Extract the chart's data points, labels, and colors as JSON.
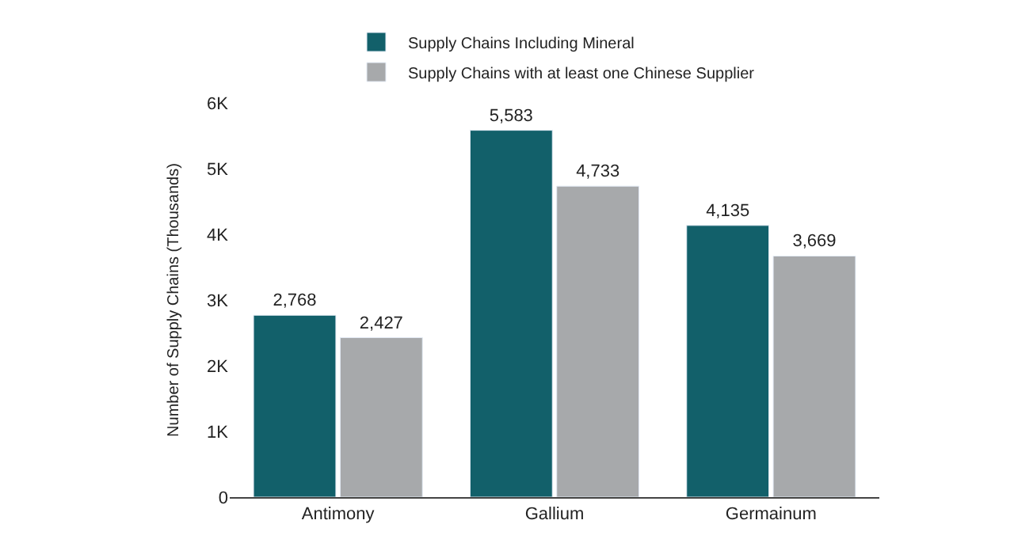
{
  "chart_data": {
    "type": "bar",
    "ylabel": "Number of Supply Chains (Thousands)",
    "categories": [
      "Antimony",
      "Gallium",
      "Germainum"
    ],
    "series": [
      {
        "name": "Supply Chains Including Mineral",
        "color": "#12606a",
        "values": [
          2768,
          5583,
          4135
        ],
        "value_labels": [
          "2,768",
          "5,583",
          "4,135"
        ]
      },
      {
        "name": "Supply Chains with at least one Chinese Supplier",
        "color": "#a7a9ab",
        "values": [
          2427,
          4733,
          3669
        ],
        "value_labels": [
          "2,427",
          "4,733",
          "3,669"
        ]
      }
    ],
    "ylim": [
      0,
      6000
    ],
    "yticks": [
      0,
      {
        "value": 1000,
        "label": "1K"
      },
      {
        "value": 2000,
        "label": "2K"
      },
      {
        "value": 3000,
        "label": "3K"
      },
      {
        "value": 4000,
        "label": "4K"
      },
      {
        "value": 5000,
        "label": "5K"
      },
      {
        "value": 6000,
        "label": "6K"
      }
    ],
    "legend": "top",
    "grid": false
  }
}
